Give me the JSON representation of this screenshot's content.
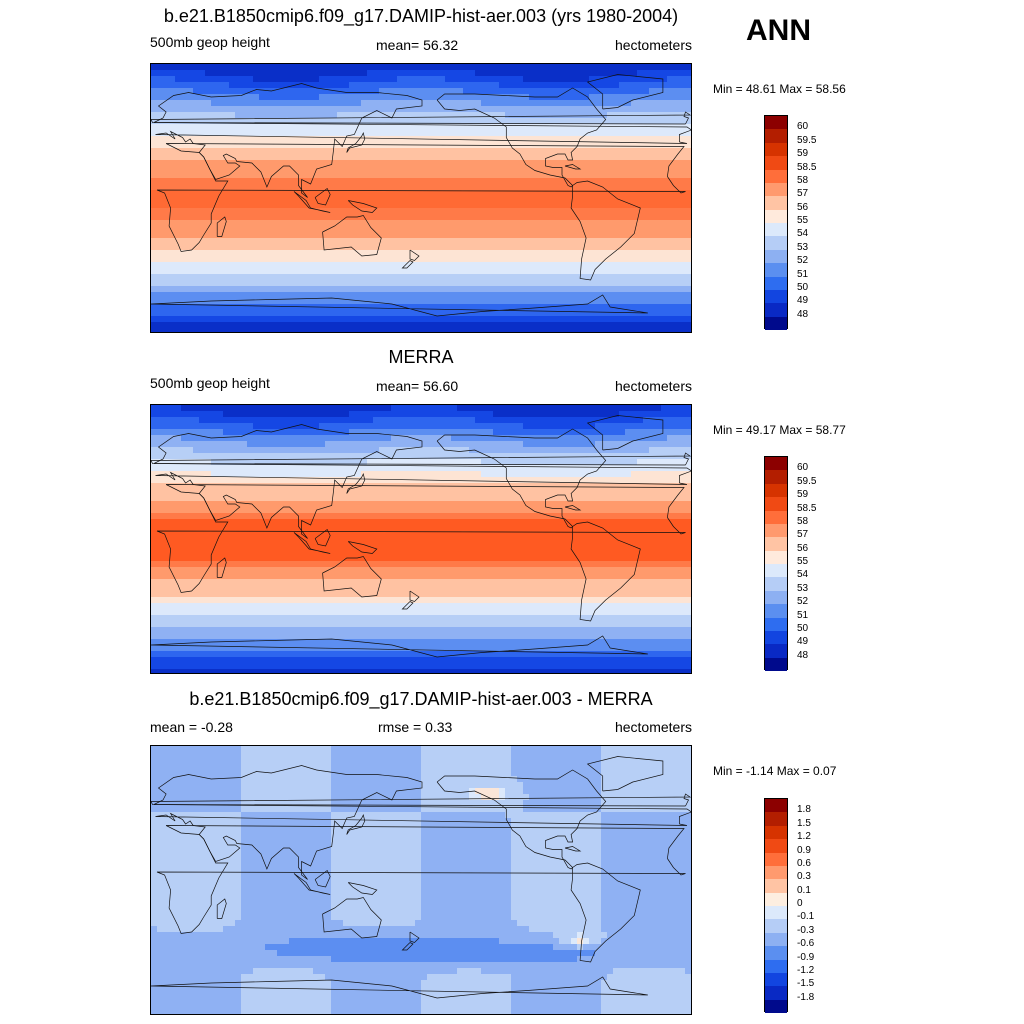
{
  "season": "ANN",
  "panels": [
    {
      "title": "b.e21.B1850cmip6.f09_g17.DAMIP-hist-aer.003 (yrs 1980-2004)",
      "left_label": "500mb geop height",
      "center_label": "mean=  56.32",
      "right_label": "hectometers",
      "minmax": "Min =  48.61 Max =  58.56",
      "colorbar": {
        "labels": [
          "60",
          "59.5",
          "59",
          "58.5",
          "58",
          "57",
          "56",
          "55",
          "54",
          "53",
          "52",
          "51",
          "50",
          "49",
          "48"
        ],
        "colors": [
          "#8c0000",
          "#b31e00",
          "#d63300",
          "#f04a14",
          "#ff6e3a",
          "#ff9a6e",
          "#ffc4a4",
          "#ffeadc",
          "#dce9fb",
          "#b5cdf6",
          "#8db0f2",
          "#5b8ff0",
          "#2e6df0",
          "#1245e0",
          "#0929c4",
          "#000a8c"
        ]
      },
      "field": {
        "kind": "ctl",
        "bands": [
          "#0a2fc8",
          "#1547e4",
          "#2e66ef",
          "#5c8ef1",
          "#8fb1f3",
          "#b7cff6",
          "#dde9fb",
          "#fde4d4",
          "#ffc2a2",
          "#ff9a6c",
          "#ff7a48",
          "#ff6a34"
        ]
      }
    },
    {
      "title": "MERRA",
      "left_label": "500mb geop height",
      "center_label": "mean=  56.60",
      "right_label": "hectometers",
      "minmax": "Min =  49.17 Max =  58.77",
      "colorbar": {
        "labels": [
          "60",
          "59.5",
          "59",
          "58.5",
          "58",
          "57",
          "56",
          "55",
          "54",
          "53",
          "52",
          "51",
          "50",
          "49",
          "48"
        ],
        "colors": [
          "#8c0000",
          "#b31e00",
          "#d63300",
          "#f04a14",
          "#ff6e3a",
          "#ff9a6e",
          "#ffc4a4",
          "#ffeadc",
          "#dce9fb",
          "#b5cdf6",
          "#8db0f2",
          "#5b8ff0",
          "#2e6df0",
          "#1245e0",
          "#0929c4",
          "#000a8c"
        ]
      },
      "field": {
        "kind": "obs",
        "bands": [
          "#0a2fc8",
          "#1547e4",
          "#2e66ef",
          "#5c8ef1",
          "#8fb1f3",
          "#b7cff6",
          "#dde9fb",
          "#fde4d4",
          "#ffc2a2",
          "#ff9a6c",
          "#ff7a48",
          "#ff5a22"
        ]
      }
    },
    {
      "title": "b.e21.B1850cmip6.f09_g17.DAMIP-hist-aer.003 - MERRA",
      "left_label": "mean =  -0.28",
      "center_label": "rmse =   0.33",
      "right_label": "hectometers",
      "minmax": "Min =  -1.14 Max =   0.07",
      "colorbar": {
        "labels": [
          "1.8",
          "1.5",
          "1.2",
          "0.9",
          "0.6",
          "0.3",
          "0.1",
          "0",
          "-0.1",
          "-0.3",
          "-0.6",
          "-0.9",
          "-1.2",
          "-1.5",
          "-1.8"
        ],
        "colors": [
          "#8c0000",
          "#b31e00",
          "#d63300",
          "#f04a14",
          "#ff6e3a",
          "#ff9a6e",
          "#ffc4a4",
          "#fdeee0",
          "#dce9fb",
          "#b5cdf6",
          "#8db0f2",
          "#5b8ff0",
          "#2e6df0",
          "#1245e0",
          "#0929c4",
          "#000a8c"
        ]
      },
      "field": {
        "kind": "diff",
        "bands": [
          "#b7cff6",
          "#8fb1f3",
          "#5c8ef1",
          "#2e66ef",
          "#dce9fb",
          "#fbe6d8"
        ]
      }
    }
  ]
}
